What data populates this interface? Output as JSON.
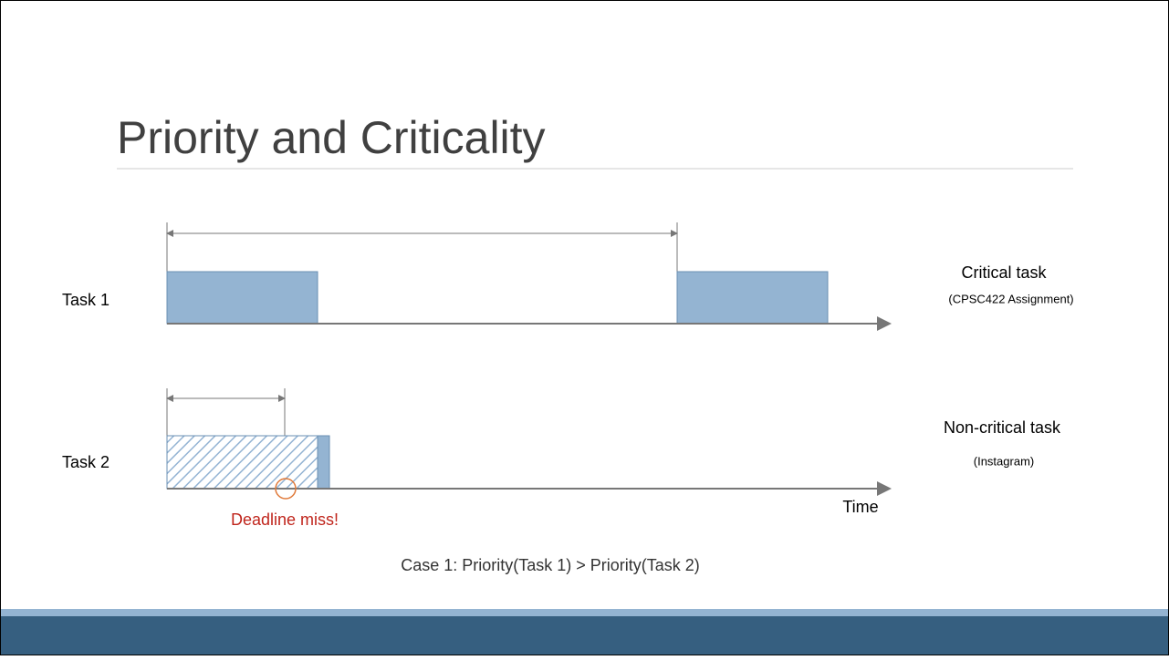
{
  "title": "Priority and Criticality",
  "tasks": [
    {
      "label": "Task 1",
      "kind": "Critical task",
      "example": "(CPSC422 Assignment)"
    },
    {
      "label": "Task 2",
      "kind": "Non-critical task",
      "example": "(Instagram)"
    }
  ],
  "axis_label": "Time",
  "annotation": "Deadline miss!",
  "caption": "Case 1: Priority(Task 1) > Priority(Task 2)"
}
